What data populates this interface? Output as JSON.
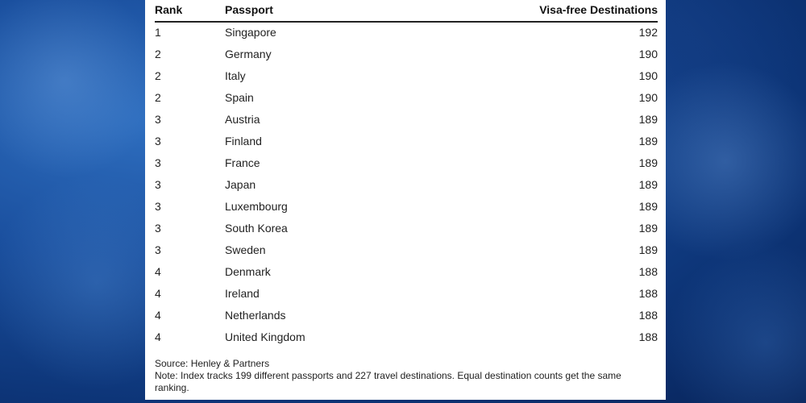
{
  "table": {
    "headers": [
      "Rank",
      "Passport",
      "Visa-free Destinations"
    ],
    "rows": [
      [
        "1",
        "Singapore",
        "192"
      ],
      [
        "2",
        "Germany",
        "190"
      ],
      [
        "2",
        "Italy",
        "190"
      ],
      [
        "2",
        "Spain",
        "190"
      ],
      [
        "3",
        "Austria",
        "189"
      ],
      [
        "3",
        "Finland",
        "189"
      ],
      [
        "3",
        "France",
        "189"
      ],
      [
        "3",
        "Japan",
        "189"
      ],
      [
        "3",
        "Luxembourg",
        "189"
      ],
      [
        "3",
        "South Korea",
        "189"
      ],
      [
        "3",
        "Sweden",
        "189"
      ],
      [
        "4",
        "Denmark",
        "188"
      ],
      [
        "4",
        "Ireland",
        "188"
      ],
      [
        "4",
        "Netherlands",
        "188"
      ],
      [
        "4",
        "United Kingdom",
        "188"
      ]
    ]
  },
  "chart_data": {
    "type": "table",
    "columns": [
      "Rank",
      "Passport",
      "Visa-free Destinations"
    ],
    "rows": [
      [
        1,
        "Singapore",
        192
      ],
      [
        2,
        "Germany",
        190
      ],
      [
        2,
        "Italy",
        190
      ],
      [
        2,
        "Spain",
        190
      ],
      [
        3,
        "Austria",
        189
      ],
      [
        3,
        "Finland",
        189
      ],
      [
        3,
        "France",
        189
      ],
      [
        3,
        "Japan",
        189
      ],
      [
        3,
        "Luxembourg",
        189
      ],
      [
        3,
        "South Korea",
        189
      ],
      [
        3,
        "Sweden",
        189
      ],
      [
        4,
        "Denmark",
        188
      ],
      [
        4,
        "Ireland",
        188
      ],
      [
        4,
        "Netherlands",
        188
      ],
      [
        4,
        "United Kingdom",
        188
      ]
    ]
  },
  "footer": {
    "source": "Source: Henley & Partners",
    "note": "Note: Index tracks 199 different passports and 227 travel destinations. Equal destination counts get the same ranking."
  }
}
